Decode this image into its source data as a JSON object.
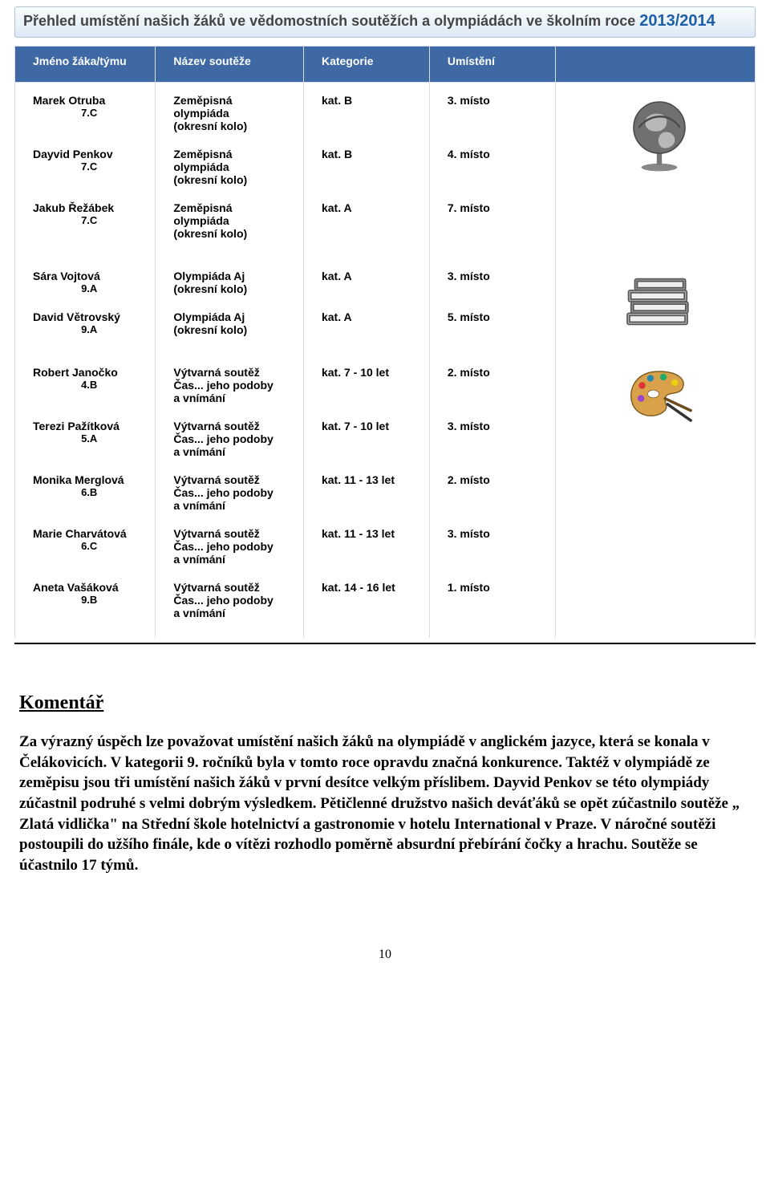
{
  "title": {
    "text": "Přehled umístění našich žáků ve vědomostních soutěžích a olympiádách ve školním roce ",
    "year": "2013/2014"
  },
  "colors": {
    "header_bg": "#3e69a5",
    "header_text": "#ffffff",
    "title_year": "#1f5fa8",
    "title_text": "#444444",
    "border": "#c8c8c8"
  },
  "columns": {
    "student": "Jméno žáka/týmu",
    "competition": "Název soutěže",
    "category": "Kategorie",
    "placement": "Umístění"
  },
  "groups": [
    {
      "image": "globe",
      "rows": [
        {
          "name": "Marek Otruba",
          "cls": "7.C",
          "comp_l1": "Zeměpisná",
          "comp_l2": "olympiáda",
          "comp_l3": "(okresní kolo)",
          "cat": "kat. B",
          "place": "3. místo"
        },
        {
          "name": "Dayvid Penkov",
          "cls": "7.C",
          "comp_l1": "Zeměpisná",
          "comp_l2": "olympiáda",
          "comp_l3": "(okresní kolo)",
          "cat": "kat. B",
          "place": "4. místo"
        },
        {
          "name": "Jakub Řežábek",
          "cls": "7.C",
          "comp_l1": "Zeměpisná",
          "comp_l2": "olympiáda",
          "comp_l3": "(okresní kolo)",
          "cat": "kat. A",
          "place": "7. místo"
        }
      ]
    },
    {
      "image": "books",
      "rows": [
        {
          "name": "Sára Vojtová",
          "cls": "9.A",
          "comp_l1": "Olympiáda Aj",
          "comp_l2": "(okresní kolo)",
          "comp_l3": "",
          "cat": "kat. A",
          "place": "3. místo"
        },
        {
          "name": "David Větrovský",
          "cls": "9.A",
          "comp_l1": "Olympiáda Aj",
          "comp_l2": "(okresní kolo)",
          "comp_l3": "",
          "cat": "kat. A",
          "place": "5. místo"
        }
      ]
    },
    {
      "image": "palette",
      "rows": [
        {
          "name": "Robert Janočko",
          "cls": "4.B",
          "comp_l1": "Výtvarná soutěž",
          "comp_l2": "Čas... jeho podoby",
          "comp_l3": "a vnímání",
          "cat": "kat. 7 - 10 let",
          "place": "2. místo"
        },
        {
          "name": "Terezi Pažítková",
          "cls": "5.A",
          "comp_l1": "Výtvarná soutěž",
          "comp_l2": "Čas... jeho podoby",
          "comp_l3": "a vnímání",
          "cat": "kat. 7 - 10 let",
          "place": "3. místo"
        },
        {
          "name": "Monika Merglová",
          "cls": "6.B",
          "comp_l1": "Výtvarná soutěž",
          "comp_l2": "Čas... jeho podoby",
          "comp_l3": "a vnímání",
          "cat": "kat. 11 - 13 let",
          "place": "2. místo"
        },
        {
          "name": "Marie Charvátová",
          "cls": "6.C",
          "comp_l1": "Výtvarná soutěž",
          "comp_l2": "Čas... jeho podoby",
          "comp_l3": "a vnímání",
          "cat": "kat. 11 - 13 let",
          "place": "3. místo"
        },
        {
          "name": "Aneta Vašáková",
          "cls": "9.B",
          "comp_l1": "Výtvarná soutěž",
          "comp_l2": "Čas... jeho podoby",
          "comp_l3": "a vnímání",
          "cat": "kat. 14 - 16 let",
          "place": "1. místo"
        }
      ]
    }
  ],
  "commentary": {
    "heading": "Komentář",
    "body": "Za výrazný úspěch lze považovat umístění našich žáků na olympiádě v anglickém jazyce, která se konala v Čelákovicích. V kategorii 9. ročníků byla v tomto roce opravdu značná konkurence. Taktéž v olympiádě ze zeměpisu jsou tři umístění našich žáků v první desítce velkým příslibem. Dayvid Penkov se této olympiády zúčastnil podruhé s velmi dobrým výsledkem. Pětičlenné družstvo našich deváťáků se opět zúčastnilo soutěže „ Zlatá vidlička\" na Střední škole hotelnictví a gastronomie v hotelu International v Praze. V náročné soutěži postoupili do užšího finále, kde o vítězi rozhodlo poměrně absurdní přebírání čočky a hrachu. Soutěže se účastnilo 17 týmů."
  },
  "page_number": "10"
}
